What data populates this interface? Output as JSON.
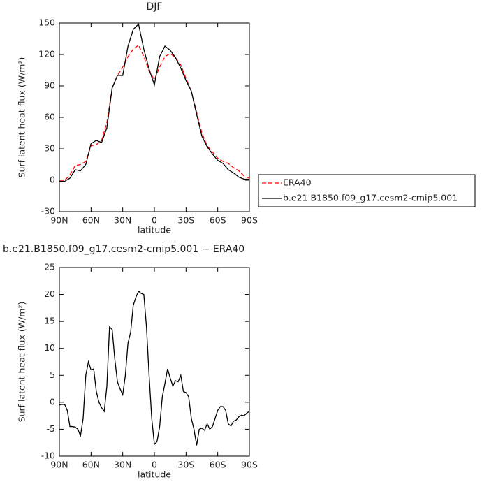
{
  "chart_data": [
    {
      "type": "line",
      "title": "DJF",
      "x_label": "latitude",
      "y_label": "Surf latent heat flux (W/m²)",
      "x": [
        90,
        85,
        80,
        75,
        70,
        65,
        60,
        55,
        50,
        45,
        40,
        35,
        30,
        25,
        20,
        15,
        10,
        5,
        0,
        -5,
        -10,
        -15,
        -20,
        -25,
        -30,
        -35,
        -40,
        -45,
        -50,
        -55,
        -60,
        -65,
        -70,
        -75,
        -80,
        -85,
        -90
      ],
      "series": [
        {
          "name": "ERA40",
          "color": "#ff0000",
          "line_style": "dashed",
          "values": [
            0,
            0,
            5,
            14,
            15,
            18,
            33,
            34,
            38,
            55,
            88,
            100,
            108,
            118,
            125,
            129,
            118,
            104,
            96,
            108,
            118,
            121,
            117,
            110,
            97,
            85,
            65,
            45,
            33,
            27,
            21,
            18,
            16,
            12,
            9,
            4,
            2
          ]
        },
        {
          "name": "b.e21.B1850.f09_g17.cesm2-cmip5.001",
          "color": "#000000",
          "line_style": "solid",
          "values": [
            -1,
            -1,
            2,
            10,
            9,
            15,
            35,
            38,
            36,
            50,
            88,
            100,
            100,
            128,
            144,
            149,
            125,
            106,
            91,
            118,
            128,
            124,
            117,
            107,
            95,
            85,
            63,
            42,
            32,
            25,
            19,
            16,
            10,
            7,
            3,
            1,
            1
          ]
        }
      ],
      "xlim": [
        90,
        -90
      ],
      "xticks": [
        {
          "value": 90,
          "label": "90N"
        },
        {
          "value": 60,
          "label": "60N"
        },
        {
          "value": 30,
          "label": "30N"
        },
        0,
        {
          "value": -30,
          "label": "30S"
        },
        {
          "value": -60,
          "label": "60S"
        },
        {
          "value": -90,
          "label": "90S"
        }
      ],
      "ylim": [
        -30,
        150
      ],
      "yticks": [
        -30,
        0,
        30,
        60,
        90,
        120,
        150
      ],
      "legend": "right"
    },
    {
      "type": "line",
      "title": "b.e21.B1850.f09_g17.cesm2-cmip5.001 − ERA40",
      "x_label": "latitude",
      "y_label": "Surf latent heat flux (W/m²)",
      "x": [
        90,
        87.5,
        85,
        82.5,
        80,
        77.5,
        75,
        72.5,
        70,
        67.5,
        65,
        62.5,
        60,
        57.5,
        55,
        52.5,
        50,
        47.5,
        45,
        42.5,
        40,
        37.5,
        35,
        32.5,
        30,
        27.5,
        25,
        22.5,
        20,
        17.5,
        15,
        12.5,
        10,
        7.5,
        5,
        2.5,
        0,
        -2.5,
        -5,
        -7.5,
        -10,
        -12.5,
        -15,
        -17.5,
        -20,
        -22.5,
        -25,
        -27.5,
        -30,
        -32.5,
        -35,
        -37.5,
        -40,
        -42.5,
        -45,
        -47.5,
        -50,
        -52.5,
        -55,
        -57.5,
        -60,
        -62.5,
        -65,
        -67.5,
        -70,
        -72.5,
        -75,
        -77.5,
        -80,
        -82.5,
        -85,
        -87.5,
        -90
      ],
      "color": "#000000",
      "values": [
        -0.5,
        -0.4,
        -0.4,
        -1.5,
        -4.5,
        -4.5,
        -4.6,
        -5,
        -6.2,
        -3,
        5,
        7.5,
        6,
        6.2,
        2,
        0,
        -1,
        -1.7,
        3,
        14,
        13.5,
        8,
        3.8,
        2.5,
        1.4,
        5,
        11,
        13,
        18,
        19.5,
        20.6,
        20.2,
        20,
        14,
        5,
        -3,
        -7.8,
        -7.3,
        -4.5,
        1,
        3.5,
        6.2,
        4.5,
        3,
        4,
        3.8,
        5,
        2,
        1.8,
        1,
        -3,
        -5,
        -8,
        -5,
        -4.8,
        -5.2,
        -4,
        -5,
        -4.5,
        -3,
        -1.5,
        -0.8,
        -0.8,
        -1.5,
        -4,
        -4.4,
        -3.5,
        -3.3,
        -2.7,
        -2.4,
        -2.5,
        -2,
        -1.7
      ],
      "xlim": [
        90,
        -90
      ],
      "xticks": [
        {
          "value": 90,
          "label": "90N"
        },
        {
          "value": 60,
          "label": "60N"
        },
        {
          "value": 30,
          "label": "30N"
        },
        0,
        {
          "value": -30,
          "label": "30S"
        },
        {
          "value": -60,
          "label": "60S"
        },
        {
          "value": -90,
          "label": "90S"
        }
      ],
      "ylim": [
        -10,
        25
      ],
      "yticks": [
        -10,
        -5,
        0,
        5,
        10,
        15,
        20,
        25
      ]
    }
  ]
}
